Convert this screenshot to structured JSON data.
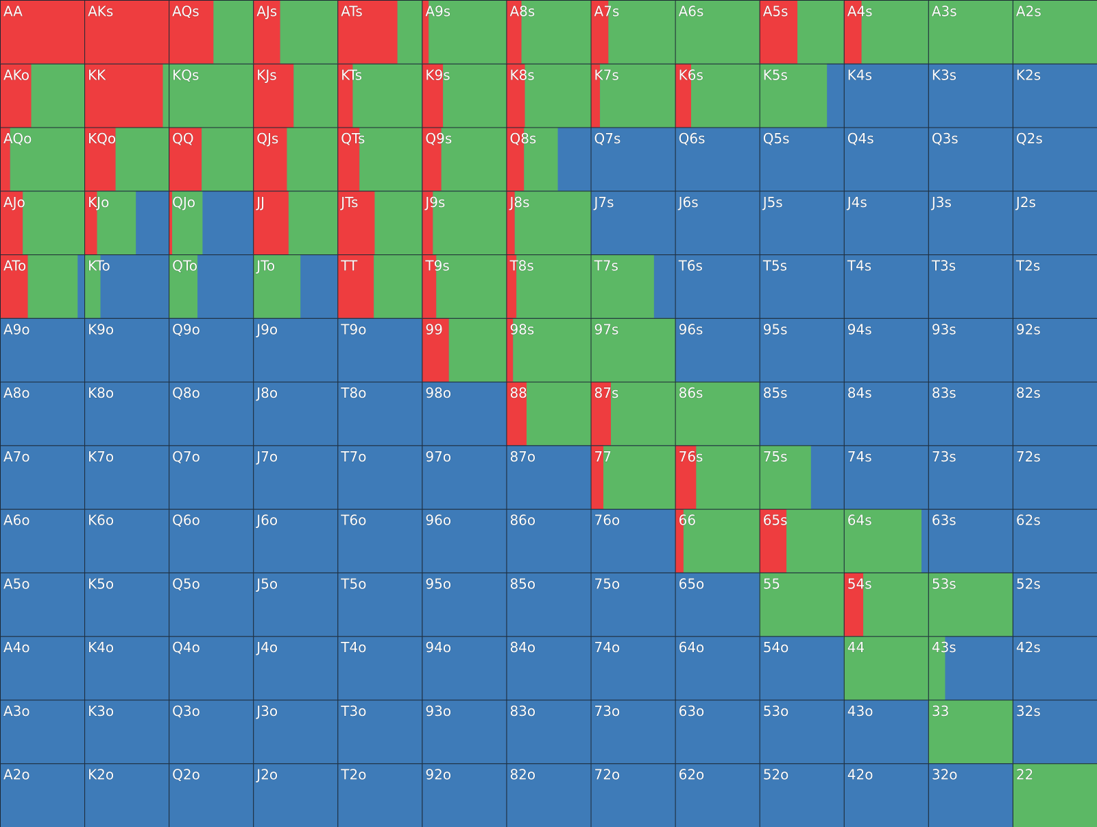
{
  "colors": {
    "red": "#ee3d3f",
    "green": "#5cb865",
    "blue": "#3e7bb8"
  },
  "grid": {
    "rows": [
      [
        {
          "label": "AA",
          "red": 100
        },
        {
          "label": "AKs",
          "red": 100
        },
        {
          "label": "AQs",
          "red": 53,
          "green": 47
        },
        {
          "label": "AJs",
          "red": 32,
          "green": 68
        },
        {
          "label": "ATs",
          "red": 71,
          "green": 29
        },
        {
          "label": "A9s",
          "red": 8,
          "green": 92
        },
        {
          "label": "A8s",
          "red": 18,
          "green": 82
        },
        {
          "label": "A7s",
          "red": 21,
          "green": 79
        },
        {
          "label": "A6s",
          "green": 100
        },
        {
          "label": "A5s",
          "red": 45,
          "green": 55
        },
        {
          "label": "A4s",
          "red": 21,
          "green": 79
        },
        {
          "label": "A3s",
          "green": 100
        },
        {
          "label": "A2s",
          "green": 100
        }
      ],
      [
        {
          "label": "AKo",
          "red": 37,
          "green": 63
        },
        {
          "label": "KK",
          "red": 93,
          "green": 7
        },
        {
          "label": "KQs",
          "green": 100
        },
        {
          "label": "KJs",
          "red": 48,
          "green": 52
        },
        {
          "label": "KTs",
          "red": 18,
          "green": 82
        },
        {
          "label": "K9s",
          "red": 25,
          "green": 75
        },
        {
          "label": "K8s",
          "red": 22,
          "green": 78
        },
        {
          "label": "K7s",
          "red": 11,
          "green": 89
        },
        {
          "label": "K6s",
          "red": 19,
          "green": 81
        },
        {
          "label": "K5s",
          "green": 80
        },
        {
          "label": "K4s"
        },
        {
          "label": "K3s"
        },
        {
          "label": "K2s"
        }
      ],
      [
        {
          "label": "AQo",
          "red": 12,
          "green": 88
        },
        {
          "label": "KQo",
          "red": 37,
          "green": 63
        },
        {
          "label": "QQ",
          "red": 39,
          "green": 61
        },
        {
          "label": "QJs",
          "red": 40,
          "green": 60
        },
        {
          "label": "QTs",
          "red": 26,
          "green": 74
        },
        {
          "label": "Q9s",
          "red": 23,
          "green": 77
        },
        {
          "label": "Q8s",
          "red": 21,
          "green": 40
        },
        {
          "label": "Q7s"
        },
        {
          "label": "Q6s"
        },
        {
          "label": "Q5s"
        },
        {
          "label": "Q4s"
        },
        {
          "label": "Q3s"
        },
        {
          "label": "Q2s"
        }
      ],
      [
        {
          "label": "AJo",
          "red": 27,
          "green": 73
        },
        {
          "label": "KJo",
          "red": 15,
          "green": 46
        },
        {
          "label": "QJo",
          "red": 4,
          "green": 36
        },
        {
          "label": "JJ",
          "red": 42,
          "green": 58
        },
        {
          "label": "JTs",
          "red": 44,
          "green": 56
        },
        {
          "label": "J9s",
          "red": 13,
          "green": 87
        },
        {
          "label": "J8s",
          "red": 10,
          "green": 90
        },
        {
          "label": "J7s"
        },
        {
          "label": "J6s"
        },
        {
          "label": "J5s"
        },
        {
          "label": "J4s"
        },
        {
          "label": "J3s"
        },
        {
          "label": "J2s"
        }
      ],
      [
        {
          "label": "ATo",
          "red": 33,
          "green": 59
        },
        {
          "label": "KTo",
          "green": 19
        },
        {
          "label": "QTo",
          "green": 34
        },
        {
          "label": "JTo",
          "green": 56
        },
        {
          "label": "TT",
          "red": 43,
          "green": 57
        },
        {
          "label": "T9s",
          "red": 17,
          "green": 83
        },
        {
          "label": "T8s",
          "red": 12,
          "green": 88
        },
        {
          "label": "T7s",
          "green": 75
        },
        {
          "label": "T6s"
        },
        {
          "label": "T5s"
        },
        {
          "label": "T4s"
        },
        {
          "label": "T3s"
        },
        {
          "label": "T2s"
        }
      ],
      [
        {
          "label": "A9o"
        },
        {
          "label": "K9o"
        },
        {
          "label": "Q9o"
        },
        {
          "label": "J9o"
        },
        {
          "label": "T9o"
        },
        {
          "label": "99",
          "red": 32,
          "green": 68
        },
        {
          "label": "98s",
          "red": 8,
          "green": 92
        },
        {
          "label": "97s",
          "green": 100
        },
        {
          "label": "96s"
        },
        {
          "label": "95s"
        },
        {
          "label": "94s"
        },
        {
          "label": "93s"
        },
        {
          "label": "92s"
        }
      ],
      [
        {
          "label": "A8o"
        },
        {
          "label": "K8o"
        },
        {
          "label": "Q8o"
        },
        {
          "label": "J8o"
        },
        {
          "label": "T8o"
        },
        {
          "label": "98o"
        },
        {
          "label": "88",
          "red": 24,
          "green": 76
        },
        {
          "label": "87s",
          "red": 24,
          "green": 76
        },
        {
          "label": "86s",
          "green": 100
        },
        {
          "label": "85s"
        },
        {
          "label": "84s"
        },
        {
          "label": "83s"
        },
        {
          "label": "82s"
        }
      ],
      [
        {
          "label": "A7o"
        },
        {
          "label": "K7o"
        },
        {
          "label": "Q7o"
        },
        {
          "label": "J7o"
        },
        {
          "label": "T7o"
        },
        {
          "label": "97o"
        },
        {
          "label": "87o"
        },
        {
          "label": "77",
          "red": 15,
          "green": 85
        },
        {
          "label": "76s",
          "red": 25,
          "green": 75
        },
        {
          "label": "75s",
          "green": 61
        },
        {
          "label": "74s"
        },
        {
          "label": "73s"
        },
        {
          "label": "72s"
        }
      ],
      [
        {
          "label": "A6o"
        },
        {
          "label": "K6o"
        },
        {
          "label": "Q6o"
        },
        {
          "label": "J6o"
        },
        {
          "label": "T6o"
        },
        {
          "label": "96o"
        },
        {
          "label": "86o"
        },
        {
          "label": "76o"
        },
        {
          "label": "66",
          "red": 10,
          "green": 90
        },
        {
          "label": "65s",
          "red": 32,
          "green": 68
        },
        {
          "label": "64s",
          "green": 92
        },
        {
          "label": "63s"
        },
        {
          "label": "62s"
        }
      ],
      [
        {
          "label": "A5o"
        },
        {
          "label": "K5o"
        },
        {
          "label": "Q5o"
        },
        {
          "label": "J5o"
        },
        {
          "label": "T5o"
        },
        {
          "label": "95o"
        },
        {
          "label": "85o"
        },
        {
          "label": "75o"
        },
        {
          "label": "65o"
        },
        {
          "label": "55",
          "green": 100
        },
        {
          "label": "54s",
          "red": 23,
          "green": 77
        },
        {
          "label": "53s",
          "green": 100
        },
        {
          "label": "52s"
        }
      ],
      [
        {
          "label": "A4o"
        },
        {
          "label": "K4o"
        },
        {
          "label": "Q4o"
        },
        {
          "label": "J4o"
        },
        {
          "label": "T4o"
        },
        {
          "label": "94o"
        },
        {
          "label": "84o"
        },
        {
          "label": "74o"
        },
        {
          "label": "64o"
        },
        {
          "label": "54o"
        },
        {
          "label": "44",
          "green": 100
        },
        {
          "label": "43s",
          "green": 20
        },
        {
          "label": "42s"
        }
      ],
      [
        {
          "label": "A3o"
        },
        {
          "label": "K3o"
        },
        {
          "label": "Q3o"
        },
        {
          "label": "J3o"
        },
        {
          "label": "T3o"
        },
        {
          "label": "93o"
        },
        {
          "label": "83o"
        },
        {
          "label": "73o"
        },
        {
          "label": "63o"
        },
        {
          "label": "53o"
        },
        {
          "label": "43o"
        },
        {
          "label": "33",
          "green": 100
        },
        {
          "label": "32s"
        }
      ],
      [
        {
          "label": "A2o"
        },
        {
          "label": "K2o"
        },
        {
          "label": "Q2o"
        },
        {
          "label": "J2o"
        },
        {
          "label": "T2o"
        },
        {
          "label": "92o"
        },
        {
          "label": "82o"
        },
        {
          "label": "72o"
        },
        {
          "label": "62o"
        },
        {
          "label": "52o"
        },
        {
          "label": "42o"
        },
        {
          "label": "32o"
        },
        {
          "label": "22",
          "green": 100
        }
      ]
    ]
  }
}
